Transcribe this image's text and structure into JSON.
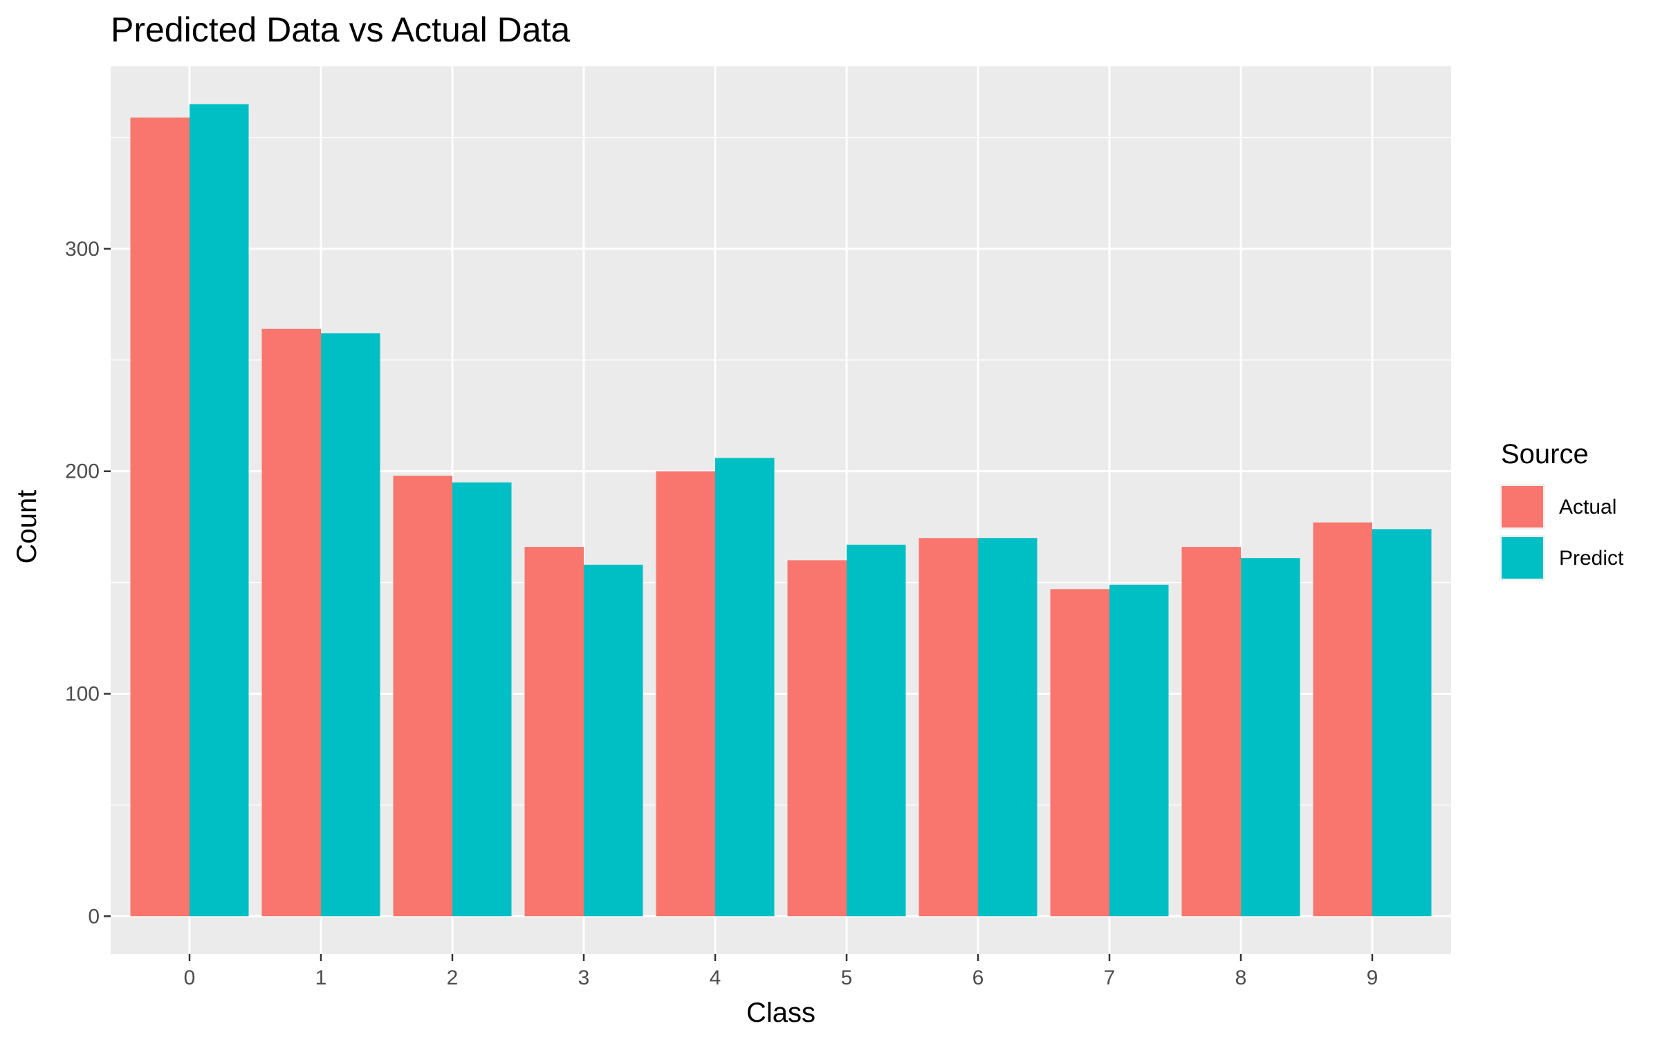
{
  "chart_data": {
    "type": "bar",
    "title": "Predicted Data vs Actual Data",
    "xlabel": "Class",
    "ylabel": "Count",
    "categories": [
      "0",
      "1",
      "2",
      "3",
      "4",
      "5",
      "6",
      "7",
      "8",
      "9"
    ],
    "series": [
      {
        "name": "Actual",
        "color": "#F8766D",
        "values": [
          359,
          264,
          198,
          166,
          200,
          160,
          170,
          147,
          166,
          177
        ]
      },
      {
        "name": "Predict",
        "color": "#00BFC4",
        "values": [
          365,
          262,
          195,
          158,
          206,
          167,
          170,
          149,
          161,
          174
        ]
      }
    ],
    "ylim": [
      -17,
      382
    ],
    "yticks": [
      0,
      100,
      200,
      300
    ],
    "ytick_labels": [
      "0",
      "100",
      "200",
      "300"
    ],
    "grid": true,
    "panel_color": "#EBEBEB",
    "grid_color": "#FFFFFF",
    "legend": {
      "title": "Source",
      "position": "right"
    }
  }
}
